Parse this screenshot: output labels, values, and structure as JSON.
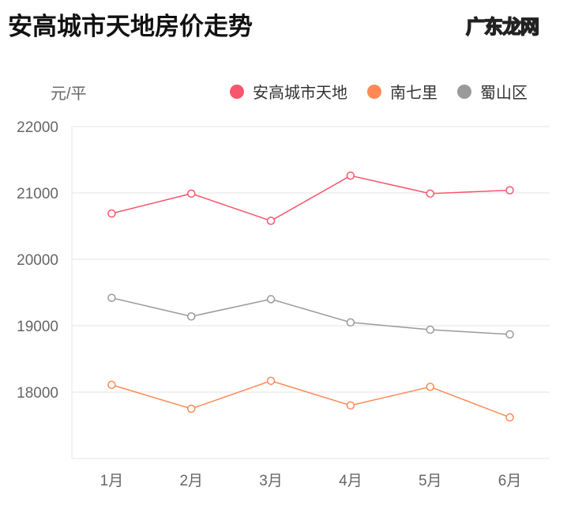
{
  "title": "安高城市天地房价走势",
  "watermark": "广东龙网",
  "chart_data": {
    "type": "line",
    "title": "安高城市天地房价走势",
    "ylabel": "元/平",
    "ylim": [
      17000,
      22000
    ],
    "yticks": [
      18000,
      19000,
      20000,
      21000,
      22000
    ],
    "grid": true,
    "legend": "top-right",
    "categories": [
      "1月",
      "2月",
      "3月",
      "4月",
      "5月",
      "6月"
    ],
    "series": [
      {
        "name": "安高城市天地",
        "color": "#f7566c",
        "values": [
          20690,
          20990,
          20580,
          21260,
          20990,
          21040
        ]
      },
      {
        "name": "南七里",
        "color": "#ff8a56",
        "values": [
          18110,
          17750,
          18170,
          17800,
          18080,
          17620
        ]
      },
      {
        "name": "蜀山区",
        "color": "#9a9a9a",
        "values": [
          19420,
          19140,
          19400,
          19050,
          18940,
          18870
        ]
      }
    ]
  }
}
